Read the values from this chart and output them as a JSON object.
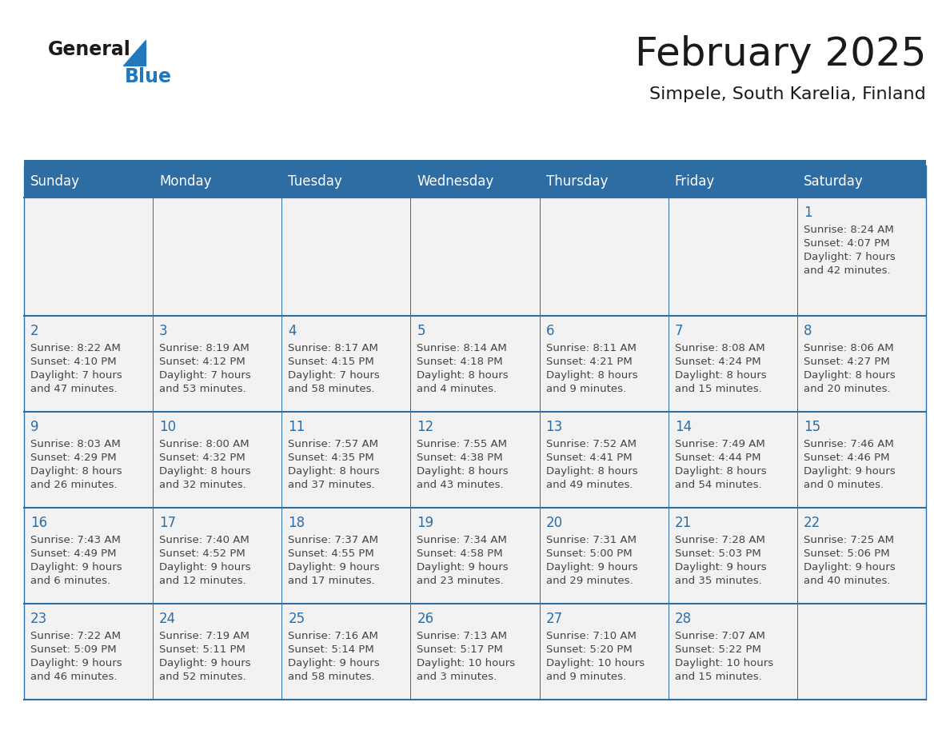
{
  "title": "February 2025",
  "subtitle": "Simpele, South Karelia, Finland",
  "header_bg": "#2E6DA4",
  "header_text_color": "#FFFFFF",
  "cell_bg": "#F2F2F2",
  "border_color": "#2E6DA4",
  "day_names": [
    "Sunday",
    "Monday",
    "Tuesday",
    "Wednesday",
    "Thursday",
    "Friday",
    "Saturday"
  ],
  "title_color": "#1a1a1a",
  "subtitle_color": "#1a1a1a",
  "general_color": "#1a1a1a",
  "blue_color": "#2278BD",
  "cell_text_color": "#444444",
  "day_number_color": "#2E6DA4",
  "calendar": [
    [
      null,
      null,
      null,
      null,
      null,
      null,
      {
        "day": "1",
        "sunrise": "8:24 AM",
        "sunset": "4:07 PM",
        "daylight": "7 hours",
        "daylight2": "and 42 minutes."
      }
    ],
    [
      {
        "day": "2",
        "sunrise": "8:22 AM",
        "sunset": "4:10 PM",
        "daylight": "7 hours",
        "daylight2": "and 47 minutes."
      },
      {
        "day": "3",
        "sunrise": "8:19 AM",
        "sunset": "4:12 PM",
        "daylight": "7 hours",
        "daylight2": "and 53 minutes."
      },
      {
        "day": "4",
        "sunrise": "8:17 AM",
        "sunset": "4:15 PM",
        "daylight": "7 hours",
        "daylight2": "and 58 minutes."
      },
      {
        "day": "5",
        "sunrise": "8:14 AM",
        "sunset": "4:18 PM",
        "daylight": "8 hours",
        "daylight2": "and 4 minutes."
      },
      {
        "day": "6",
        "sunrise": "8:11 AM",
        "sunset": "4:21 PM",
        "daylight": "8 hours",
        "daylight2": "and 9 minutes."
      },
      {
        "day": "7",
        "sunrise": "8:08 AM",
        "sunset": "4:24 PM",
        "daylight": "8 hours",
        "daylight2": "and 15 minutes."
      },
      {
        "day": "8",
        "sunrise": "8:06 AM",
        "sunset": "4:27 PM",
        "daylight": "8 hours",
        "daylight2": "and 20 minutes."
      }
    ],
    [
      {
        "day": "9",
        "sunrise": "8:03 AM",
        "sunset": "4:29 PM",
        "daylight": "8 hours",
        "daylight2": "and 26 minutes."
      },
      {
        "day": "10",
        "sunrise": "8:00 AM",
        "sunset": "4:32 PM",
        "daylight": "8 hours",
        "daylight2": "and 32 minutes."
      },
      {
        "day": "11",
        "sunrise": "7:57 AM",
        "sunset": "4:35 PM",
        "daylight": "8 hours",
        "daylight2": "and 37 minutes."
      },
      {
        "day": "12",
        "sunrise": "7:55 AM",
        "sunset": "4:38 PM",
        "daylight": "8 hours",
        "daylight2": "and 43 minutes."
      },
      {
        "day": "13",
        "sunrise": "7:52 AM",
        "sunset": "4:41 PM",
        "daylight": "8 hours",
        "daylight2": "and 49 minutes."
      },
      {
        "day": "14",
        "sunrise": "7:49 AM",
        "sunset": "4:44 PM",
        "daylight": "8 hours",
        "daylight2": "and 54 minutes."
      },
      {
        "day": "15",
        "sunrise": "7:46 AM",
        "sunset": "4:46 PM",
        "daylight": "9 hours",
        "daylight2": "and 0 minutes."
      }
    ],
    [
      {
        "day": "16",
        "sunrise": "7:43 AM",
        "sunset": "4:49 PM",
        "daylight": "9 hours",
        "daylight2": "and 6 minutes."
      },
      {
        "day": "17",
        "sunrise": "7:40 AM",
        "sunset": "4:52 PM",
        "daylight": "9 hours",
        "daylight2": "and 12 minutes."
      },
      {
        "day": "18",
        "sunrise": "7:37 AM",
        "sunset": "4:55 PM",
        "daylight": "9 hours",
        "daylight2": "and 17 minutes."
      },
      {
        "day": "19",
        "sunrise": "7:34 AM",
        "sunset": "4:58 PM",
        "daylight": "9 hours",
        "daylight2": "and 23 minutes."
      },
      {
        "day": "20",
        "sunrise": "7:31 AM",
        "sunset": "5:00 PM",
        "daylight": "9 hours",
        "daylight2": "and 29 minutes."
      },
      {
        "day": "21",
        "sunrise": "7:28 AM",
        "sunset": "5:03 PM",
        "daylight": "9 hours",
        "daylight2": "and 35 minutes."
      },
      {
        "day": "22",
        "sunrise": "7:25 AM",
        "sunset": "5:06 PM",
        "daylight": "9 hours",
        "daylight2": "and 40 minutes."
      }
    ],
    [
      {
        "day": "23",
        "sunrise": "7:22 AM",
        "sunset": "5:09 PM",
        "daylight": "9 hours",
        "daylight2": "and 46 minutes."
      },
      {
        "day": "24",
        "sunrise": "7:19 AM",
        "sunset": "5:11 PM",
        "daylight": "9 hours",
        "daylight2": "and 52 minutes."
      },
      {
        "day": "25",
        "sunrise": "7:16 AM",
        "sunset": "5:14 PM",
        "daylight": "9 hours",
        "daylight2": "and 58 minutes."
      },
      {
        "day": "26",
        "sunrise": "7:13 AM",
        "sunset": "5:17 PM",
        "daylight": "10 hours",
        "daylight2": "and 3 minutes."
      },
      {
        "day": "27",
        "sunrise": "7:10 AM",
        "sunset": "5:20 PM",
        "daylight": "10 hours",
        "daylight2": "and 9 minutes."
      },
      {
        "day": "28",
        "sunrise": "7:07 AM",
        "sunset": "5:22 PM",
        "daylight": "10 hours",
        "daylight2": "and 15 minutes."
      },
      null
    ]
  ]
}
